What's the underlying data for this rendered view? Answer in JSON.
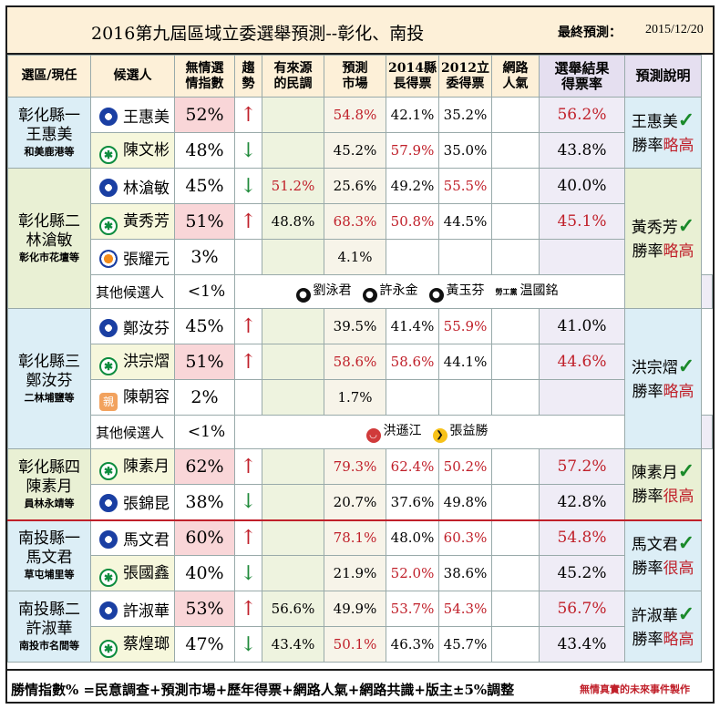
{
  "header": {
    "title": "2016第九屆區域立委選舉預測--彰化、南投",
    "final_label": "最終預測：",
    "date": "2015/12/20"
  },
  "columns": [
    "選區/現任",
    "候選人",
    "無情選情指數",
    "趨勢",
    "有來源的民調",
    "預測市場",
    "2014縣長得票",
    "2012立委得票",
    "網路人氣",
    "選舉結果得票率",
    "預測說明"
  ],
  "columns_split": {
    "index": [
      "無情選",
      "情指數"
    ],
    "trend": [
      "趨",
      "勢"
    ],
    "poll": [
      "有來源",
      "的民調"
    ],
    "market": [
      "預測",
      "市場"
    ],
    "y2014": [
      "2014縣",
      "長得票"
    ],
    "y2012": [
      "2012立",
      "委得票"
    ],
    "net": [
      "網路",
      "人氣"
    ],
    "result": [
      "選舉結果",
      "得票率"
    ]
  },
  "districts": [
    {
      "name": "彰化縣一",
      "incumbent": "王惠美",
      "area": "和美鹿港等",
      "candidates": [
        {
          "name": "王惠美",
          "party": "kmt",
          "index": "52%",
          "trend": "up",
          "poll": "",
          "market": "54.8%",
          "y2014": "42.1%",
          "y2012": "35.2%",
          "result": "56.2%"
        },
        {
          "name": "陳文彬",
          "party": "dpp",
          "index": "48%",
          "trend": "down",
          "poll": "",
          "market": "45.2%",
          "y2014": "57.9%",
          "y2012": "35.0%",
          "result": "43.8%"
        }
      ],
      "note": {
        "winner": "王惠美",
        "rate_label": "勝率",
        "rate": "略高"
      }
    },
    {
      "name": "彰化縣二",
      "incumbent": "林滄敏",
      "area": "彰化市花壇等",
      "candidates": [
        {
          "name": "林滄敏",
          "party": "kmt",
          "index": "45%",
          "trend": "down",
          "poll": "51.2%",
          "market": "25.6%",
          "y2014": "49.2%",
          "y2012": "55.5%",
          "result": "40.0%"
        },
        {
          "name": "黃秀芳",
          "party": "dpp",
          "index": "51%",
          "trend": "up",
          "poll": "48.8%",
          "market": "68.3%",
          "y2014": "50.8%",
          "y2012": "44.5%",
          "result": "45.1%"
        },
        {
          "name": "張耀元",
          "party": "pfp",
          "index": "3%",
          "trend": "",
          "poll": "",
          "market": "4.1%",
          "y2014": "",
          "y2012": "",
          "result": ""
        }
      ],
      "others_label": "其他候選人",
      "others_pct": "<1%",
      "others": [
        {
          "name": "劉泳君",
          "mark": "blk"
        },
        {
          "name": "許永金",
          "mark": "blk"
        },
        {
          "name": "黃玉芬",
          "mark": "blk"
        },
        {
          "name": "温國銘",
          "mark": "tag",
          "tag": "勞工黨"
        }
      ],
      "note": {
        "winner": "黃秀芳",
        "rate_label": "勝率",
        "rate": "略高"
      }
    },
    {
      "name": "彰化縣三",
      "incumbent": "鄭汝芬",
      "area": "二林埔鹽等",
      "candidates": [
        {
          "name": "鄭汝芬",
          "party": "kmt",
          "index": "45%",
          "trend": "up",
          "poll": "",
          "market": "39.5%",
          "y2014": "41.4%",
          "y2012": "55.9%",
          "result": "41.0%"
        },
        {
          "name": "洪宗熠",
          "party": "dpp",
          "index": "51%",
          "trend": "up",
          "poll": "",
          "market": "58.6%",
          "y2014": "58.6%",
          "y2012": "44.1%",
          "result": "44.6%"
        },
        {
          "name": "陳朝容",
          "party": "nan",
          "index": "2%",
          "trend": "",
          "poll": "",
          "market": "1.7%",
          "y2014": "",
          "y2012": "",
          "result": ""
        }
      ],
      "others_label": "其他候選人",
      "others_pct": "<1%",
      "others": [
        {
          "name": "洪遜江",
          "mark": "red"
        },
        {
          "name": "張益勝",
          "mark": "yel"
        }
      ],
      "note": {
        "winner": "洪宗熠",
        "rate_label": "勝率",
        "rate": "略高"
      }
    },
    {
      "name": "彰化縣四",
      "incumbent": "陳素月",
      "area": "員林永靖等",
      "candidates": [
        {
          "name": "陳素月",
          "party": "dpp",
          "index": "62%",
          "trend": "up",
          "poll": "",
          "market": "79.3%",
          "y2014": "62.4%",
          "y2012": "50.2%",
          "result": "57.2%"
        },
        {
          "name": "張錦昆",
          "party": "kmt",
          "index": "38%",
          "trend": "down",
          "poll": "",
          "market": "20.7%",
          "y2014": "37.6%",
          "y2012": "49.8%",
          "result": "42.8%"
        }
      ],
      "note": {
        "winner": "陳素月",
        "rate_label": "勝率",
        "rate": "很高"
      }
    },
    {
      "name": "南投縣一",
      "incumbent": "馬文君",
      "area": "草屯埔里等",
      "candidates": [
        {
          "name": "馬文君",
          "party": "kmt",
          "index": "60%",
          "trend": "up",
          "poll": "",
          "market": "78.1%",
          "y2014": "48.0%",
          "y2012": "60.3%",
          "result": "54.8%"
        },
        {
          "name": "張國鑫",
          "party": "dpp",
          "index": "40%",
          "trend": "down",
          "poll": "",
          "market": "21.9%",
          "y2014": "52.0%",
          "y2012": "38.6%",
          "result": "45.2%"
        }
      ],
      "note": {
        "winner": "馬文君",
        "rate_label": "勝率",
        "rate": "很高"
      }
    },
    {
      "name": "南投縣二",
      "incumbent": "許淑華",
      "area": "南投市名間等",
      "candidates": [
        {
          "name": "許淑華",
          "party": "kmt",
          "index": "53%",
          "trend": "up",
          "poll": "56.6%",
          "market": "49.9%",
          "y2014": "53.7%",
          "y2012": "54.3%",
          "result": "56.7%"
        },
        {
          "name": "蔡煌瑯",
          "party": "dpp",
          "index": "47%",
          "trend": "down",
          "poll": "43.4%",
          "market": "50.1%",
          "y2014": "46.3%",
          "y2012": "45.7%",
          "result": "43.4%"
        }
      ],
      "note": {
        "winner": "許淑華",
        "rate_label": "勝率",
        "rate": "略高"
      }
    }
  ],
  "red_values": [
    "52%",
    "54.8%",
    "57.9%",
    "56.2%",
    "51.2%",
    "51%",
    "68.3%",
    "50.8%",
    "55.5%",
    "45.1%",
    "51%",
    "58.6%",
    "58.6%",
    "55.9%",
    "44.6%",
    "62%",
    "79.3%",
    "62.4%",
    "50.2%",
    "57.2%",
    "60%",
    "78.1%",
    "52.0%",
    "60.3%",
    "54.8%",
    "53%",
    "56.6%",
    "50.1%",
    "53.7%",
    "54.3%",
    "56.7%"
  ],
  "footer": {
    "formula": "勝情指數% =民意調查+預測市場+歷年得票+網路人氣+網路共識+版主±5%調整",
    "credit": "無情真實的未來事件製作"
  },
  "colors": {
    "red": "#c0202a",
    "green": "#1f8a3a",
    "kmt": "#1a3fa3",
    "dpp": "#0d8c3e"
  }
}
